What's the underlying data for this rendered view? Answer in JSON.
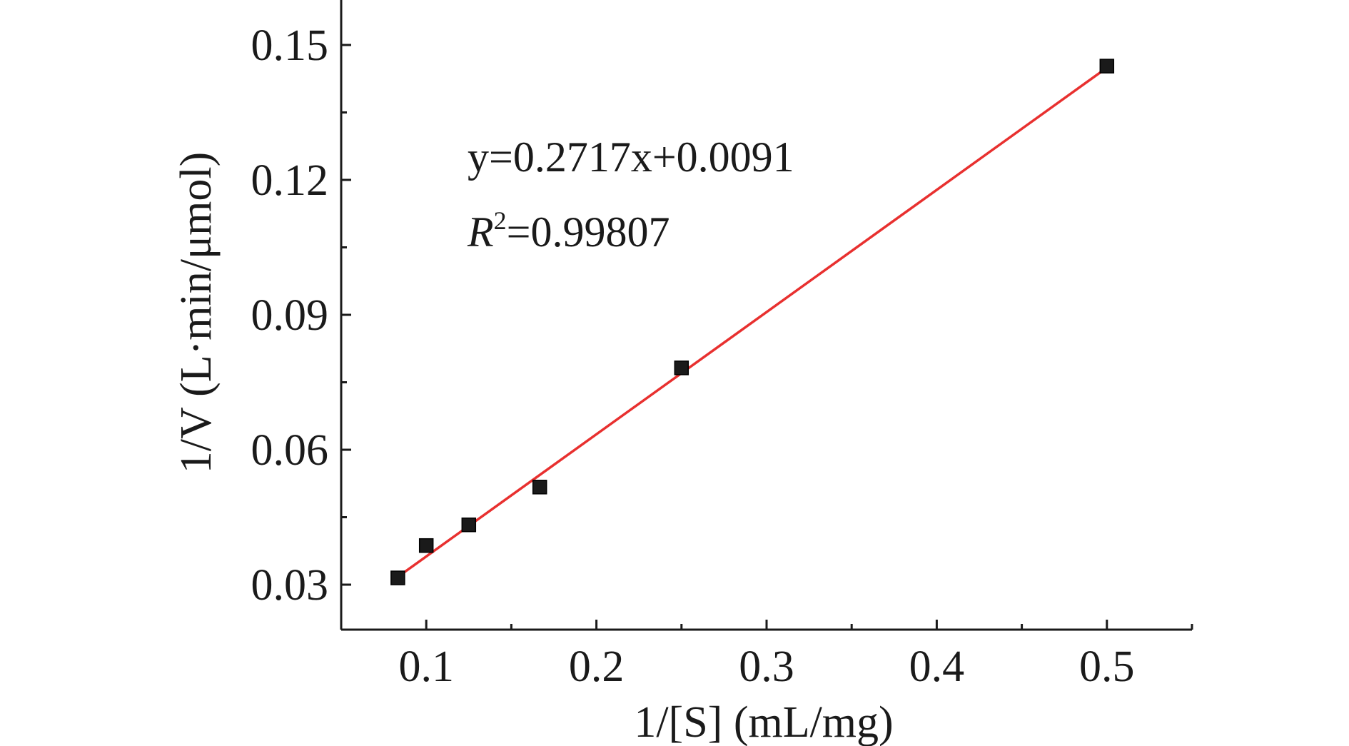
{
  "chart_data": {
    "type": "scatter",
    "xlabel": "1/[S] (mL/mg)",
    "ylabel": "1/V (L·min/μmol)",
    "xlim": [
      0.05,
      0.55
    ],
    "ylim": [
      0.02,
      0.16
    ],
    "x_ticks": [
      0.1,
      0.2,
      0.3,
      0.4,
      0.5
    ],
    "x_tick_labels": [
      "0.1",
      "0.2",
      "0.3",
      "0.4",
      "0.5"
    ],
    "y_ticks": [
      0.03,
      0.06,
      0.09,
      0.12,
      0.15
    ],
    "y_tick_labels": [
      "0.03",
      "0.06",
      "0.09",
      "0.12",
      "0.15"
    ],
    "grid": false,
    "series": [
      {
        "marker": "square",
        "color": "#1a1a1a",
        "points": [
          {
            "x": 0.0833,
            "y": 0.0315
          },
          {
            "x": 0.1,
            "y": 0.0387
          },
          {
            "x": 0.125,
            "y": 0.0433
          },
          {
            "x": 0.1667,
            "y": 0.0517
          },
          {
            "x": 0.25,
            "y": 0.0782
          },
          {
            "x": 0.5,
            "y": 0.1453
          }
        ]
      }
    ],
    "fit_line": {
      "color": "#e8302f",
      "slope": 0.2717,
      "intercept": 0.0091,
      "x_range": [
        0.0833,
        0.5
      ]
    },
    "annotations": {
      "equation": "y=0.2717x+0.0091",
      "r2_letter": "R",
      "r2_sup": "2",
      "r2_value": "=0.99807"
    }
  }
}
